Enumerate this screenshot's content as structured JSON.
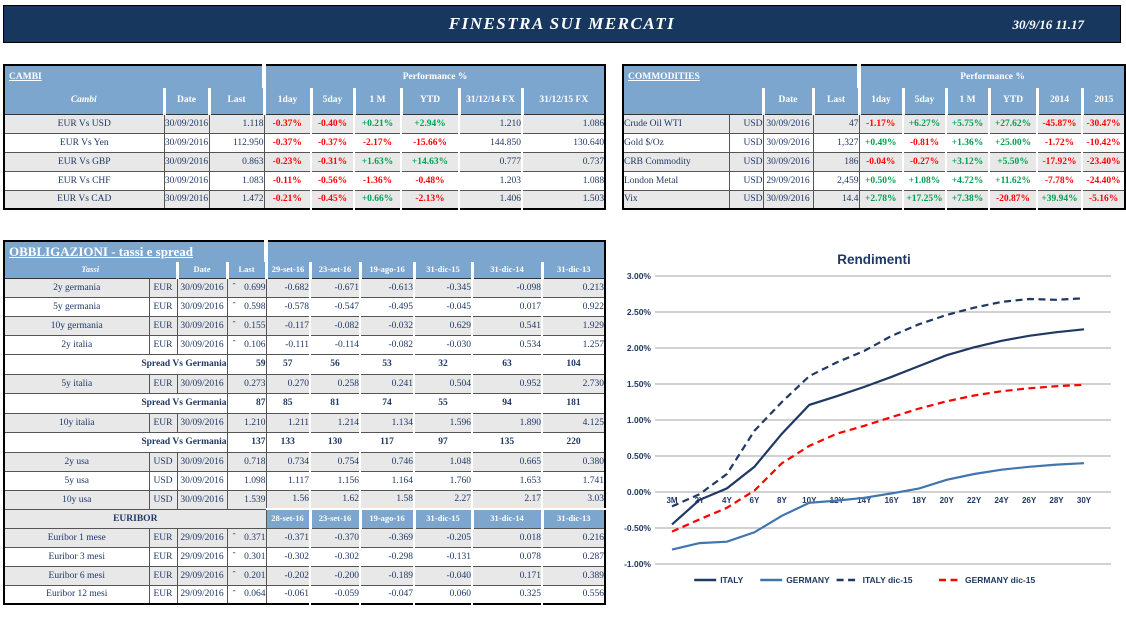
{
  "header": {
    "title": "FINESTRA SUI MERCATI",
    "datetime": "30/9/16 11.17"
  },
  "colors": {
    "navy_band": "#17375E",
    "header_blue": "#7CA6CE",
    "row_gray": "#E8E8E8",
    "positive": "#00A050",
    "negative": "#FF0000",
    "text_navy": "#1F3864",
    "grid_gray": "#A6A6A6",
    "italy_line": "#1F3864",
    "germany_line": "#4075AD",
    "germany_dic15_line": "#FF0000"
  },
  "cambi": {
    "title": "CAMBI",
    "performance_header": "Performance %",
    "columns": [
      "Cambi",
      "Date",
      "Last",
      "1day",
      "5day",
      "1 M",
      "YTD",
      "31/12/14\nFX",
      "31/12/15 FX"
    ],
    "rows": [
      {
        "name": "EUR Vs USD",
        "date": "30/09/2016",
        "last": "1.118",
        "perf": [
          "-0.37%",
          "-0.40%",
          "+0.21%",
          "+2.94%"
        ],
        "fx": [
          "1.210",
          "1.086"
        ],
        "shaded": true
      },
      {
        "name": "EUR Vs Yen",
        "date": "30/09/2016",
        "last": "112.950",
        "perf": [
          "-0.37%",
          "-0.37%",
          "-2.17%",
          "-15.66%"
        ],
        "fx": [
          "144.850",
          "130.640"
        ],
        "shaded": false
      },
      {
        "name": "EUR Vs GBP",
        "date": "30/09/2016",
        "last": "0.863",
        "perf": [
          "-0.23%",
          "-0.31%",
          "+1.63%",
          "+14.63%"
        ],
        "fx": [
          "0.777",
          "0.737"
        ],
        "shaded": true
      },
      {
        "name": "EUR Vs CHF",
        "date": "30/09/2016",
        "last": "1.083",
        "perf": [
          "-0.11%",
          "-0.56%",
          "-1.36%",
          "-0.48%"
        ],
        "fx": [
          "1.203",
          "1.088"
        ],
        "shaded": false
      },
      {
        "name": "EUR Vs CAD",
        "date": "30/09/2016",
        "last": "1.472",
        "perf": [
          "-0.21%",
          "-0.45%",
          "+0.66%",
          "-2.13%"
        ],
        "fx": [
          "1.406",
          "1.503"
        ],
        "shaded": true
      }
    ]
  },
  "commodities": {
    "title": "COMMODITIES",
    "performance_header": "Performance %",
    "columns": [
      "Date",
      "Last",
      "1day",
      "5day",
      "1 M",
      "YTD",
      "2014",
      "2015"
    ],
    "rows": [
      {
        "name": "Crude Oil WTI",
        "ccy": "USD",
        "date": "30/09/2016",
        "last": "47",
        "perf": [
          "-1.17%",
          "+6.27%",
          "+5.75%",
          "+27.62%",
          "-45.87%",
          "-30.47%"
        ],
        "shaded": true
      },
      {
        "name": "Gold $/Oz",
        "ccy": "USD",
        "date": "30/09/2016",
        "last": "1,327",
        "perf": [
          "+0.49%",
          "-0.81%",
          "+1.36%",
          "+25.00%",
          "-1.72%",
          "-10.42%"
        ],
        "shaded": false
      },
      {
        "name": "CRB Commodity",
        "ccy": "USD",
        "date": "30/09/2016",
        "last": "186",
        "perf": [
          "-0.04%",
          "-0.27%",
          "+3.12%",
          "+5.50%",
          "-17.92%",
          "-23.40%"
        ],
        "shaded": true
      },
      {
        "name": "London Metal",
        "ccy": "USD",
        "date": "29/09/2016",
        "last": "2,459",
        "perf": [
          "+0.50%",
          "+1.08%",
          "+4.72%",
          "+11.62%",
          "-7.78%",
          "-24.40%"
        ],
        "shaded": false
      },
      {
        "name": "Vix",
        "ccy": "USD",
        "date": "30/09/2016",
        "last": "14.4",
        "perf": [
          "+2.78%",
          "+17.25%",
          "+7.38%",
          "-20.87%",
          "+39.94%",
          "-5.16%"
        ],
        "shaded": true
      }
    ]
  },
  "obbligazioni": {
    "title": "OBBLIGAZIONI - tassi e spread",
    "columns": [
      "Tassi",
      "Date",
      "Last",
      "29-set-16",
      "23-set-16",
      "19-ago-16",
      "31-dic-15",
      "31-dic-14",
      "31-dic-13"
    ],
    "euribor_columns": [
      "28-set-16",
      "23-set-16",
      "19-ago-16",
      "31-dic-15",
      "31-dic-14",
      "31-dic-13"
    ],
    "rows": [
      {
        "type": "rate",
        "name": "2y germania",
        "ccy": "EUR",
        "date": "30/09/2016",
        "sign": "-",
        "last": "0.699",
        "hist": [
          "-0.682",
          "-0.671",
          "-0.613",
          "-0.345",
          "-0.098",
          "0.213"
        ],
        "shaded": true
      },
      {
        "type": "rate",
        "name": "5y germania",
        "ccy": "EUR",
        "date": "30/09/2016",
        "sign": "-",
        "last": "0.598",
        "hist": [
          "-0.578",
          "-0.547",
          "-0.495",
          "-0.045",
          "0.017",
          "0.922"
        ],
        "shaded": false
      },
      {
        "type": "rate",
        "name": "10y germania",
        "ccy": "EUR",
        "date": "30/09/2016",
        "sign": "-",
        "last": "0.155",
        "hist": [
          "-0.117",
          "-0.082",
          "-0.032",
          "0.629",
          "0.541",
          "1.929"
        ],
        "shaded": true
      },
      {
        "type": "rate",
        "name": "2y italia",
        "ccy": "EUR",
        "date": "30/09/2016",
        "sign": "-",
        "last": "0.106",
        "hist": [
          "-0.111",
          "-0.114",
          "-0.082",
          "-0.030",
          "0.534",
          "1.257"
        ],
        "shaded": false
      },
      {
        "type": "spread",
        "label": "Spread Vs Germania",
        "last": "59",
        "hist": [
          "57",
          "56",
          "53",
          "32",
          "63",
          "104"
        ]
      },
      {
        "type": "rate",
        "name": "5y italia",
        "ccy": "EUR",
        "date": "30/09/2016",
        "sign": "",
        "last": "0.273",
        "hist": [
          "0.270",
          "0.258",
          "0.241",
          "0.504",
          "0.952",
          "2.730"
        ],
        "shaded": true
      },
      {
        "type": "spread",
        "label": "Spread Vs Germania",
        "last": "87",
        "hist": [
          "85",
          "81",
          "74",
          "55",
          "94",
          "181"
        ]
      },
      {
        "type": "rate",
        "name": "10y italia",
        "ccy": "EUR",
        "date": "30/09/2016",
        "sign": "",
        "last": "1.210",
        "hist": [
          "1.211",
          "1.214",
          "1.134",
          "1.596",
          "1.890",
          "4.125"
        ],
        "shaded": true
      },
      {
        "type": "spread",
        "label": "Spread Vs Germania",
        "last": "137",
        "hist": [
          "133",
          "130",
          "117",
          "97",
          "135",
          "220"
        ]
      },
      {
        "type": "rate",
        "name": "2y usa",
        "ccy": "USD",
        "date": "30/09/2016",
        "sign": "",
        "last": "0.718",
        "hist": [
          "0.734",
          "0.754",
          "0.746",
          "1.048",
          "0.665",
          "0.380"
        ],
        "shaded": true
      },
      {
        "type": "rate",
        "name": "5y usa",
        "ccy": "USD",
        "date": "30/09/2016",
        "sign": "",
        "last": "1.098",
        "hist": [
          "1.117",
          "1.156",
          "1.164",
          "1.760",
          "1.653",
          "1.741"
        ],
        "shaded": false
      },
      {
        "type": "rate",
        "name": "10y usa",
        "ccy": "USD",
        "date": "30/09/2016",
        "sign": "",
        "last": "1.539",
        "hist": [
          "1.56",
          "1.62",
          "1.58",
          "2.27",
          "2.17",
          "3.03"
        ],
        "shaded": true
      },
      {
        "type": "section",
        "label": "EURIBOR"
      },
      {
        "type": "rate",
        "name": "Euribor 1 mese",
        "ccy": "EUR",
        "date": "29/09/2016",
        "sign": "-",
        "last": "0.371",
        "hist": [
          "-0.371",
          "-0.370",
          "-0.369",
          "-0.205",
          "0.018",
          "0.216"
        ],
        "shaded": true
      },
      {
        "type": "rate",
        "name": "Euribor 3 mesi",
        "ccy": "EUR",
        "date": "29/09/2016",
        "sign": "-",
        "last": "0.301",
        "hist": [
          "-0.302",
          "-0.302",
          "-0.298",
          "-0.131",
          "0.078",
          "0.287"
        ],
        "shaded": false
      },
      {
        "type": "rate",
        "name": "Euribor 6 mesi",
        "ccy": "EUR",
        "date": "29/09/2016",
        "sign": "-",
        "last": "0.201",
        "hist": [
          "-0.202",
          "-0.200",
          "-0.189",
          "-0.040",
          "0.171",
          "0.389"
        ],
        "shaded": true
      },
      {
        "type": "rate",
        "name": "Euribor 12 mesi",
        "ccy": "EUR",
        "date": "29/09/2016",
        "sign": "-",
        "last": "0.064",
        "hist": [
          "-0.061",
          "-0.059",
          "-0.047",
          "0.060",
          "0.325",
          "0.556"
        ],
        "shaded": false
      }
    ]
  },
  "chart_data": {
    "type": "line",
    "title": "Rendimenti",
    "categories": [
      "3M",
      "2Y",
      "4Y",
      "6Y",
      "8Y",
      "10Y",
      "12Y",
      "14Y",
      "16Y",
      "18Y",
      "20Y",
      "22Y",
      "24Y",
      "26Y",
      "28Y",
      "30Y"
    ],
    "series": [
      {
        "name": "ITALY",
        "style": "solid",
        "color": "#1F3864",
        "values": [
          -0.45,
          -0.11,
          0.05,
          0.35,
          0.81,
          1.21,
          1.33,
          1.46,
          1.6,
          1.75,
          1.9,
          2.01,
          2.1,
          2.17,
          2.22,
          2.26
        ]
      },
      {
        "name": "GERMANY",
        "style": "solid",
        "color": "#4075AD",
        "values": [
          -0.8,
          -0.71,
          -0.69,
          -0.56,
          -0.33,
          -0.15,
          -0.12,
          -0.08,
          -0.02,
          0.05,
          0.17,
          0.25,
          0.31,
          0.35,
          0.38,
          0.4
        ]
      },
      {
        "name": "ITALY dic-15",
        "style": "dashed",
        "color": "#1F3864",
        "values": [
          -0.2,
          -0.03,
          0.25,
          0.85,
          1.25,
          1.61,
          1.8,
          1.96,
          2.17,
          2.33,
          2.46,
          2.56,
          2.64,
          2.68,
          2.67,
          2.69
        ]
      },
      {
        "name": "GERMANY dic-15",
        "style": "dashed",
        "color": "#FF0000",
        "values": [
          -0.55,
          -0.38,
          -0.22,
          0.02,
          0.4,
          0.64,
          0.81,
          0.92,
          1.04,
          1.16,
          1.26,
          1.34,
          1.4,
          1.44,
          1.47,
          1.49
        ]
      }
    ],
    "ylim": [
      -1.0,
      3.0
    ],
    "ytick_step": 0.5,
    "ytick_format": "0.00%",
    "grid": true,
    "legend_position": "bottom"
  }
}
